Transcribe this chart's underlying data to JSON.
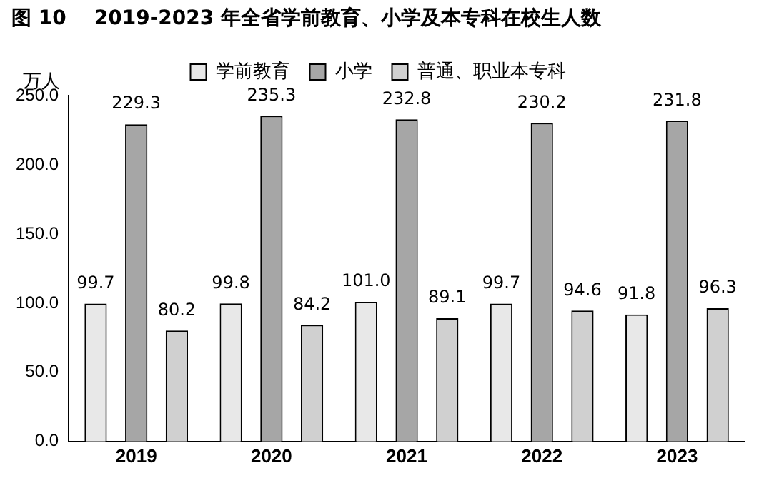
{
  "chart_data": {
    "type": "bar",
    "title": "图 10    2019-2023 年全省学前教育、小学及本专科在校生人数",
    "ylabel": "万人",
    "categories": [
      "2019",
      "2020",
      "2021",
      "2022",
      "2023"
    ],
    "series": [
      {
        "name": "学前教育",
        "color": "#e8e8e8",
        "values": [
          99.7,
          99.8,
          101.0,
          99.7,
          91.8
        ],
        "value_labels": [
          "99.7",
          "99.8",
          "101.0",
          "99.7",
          "91.8"
        ]
      },
      {
        "name": "小学",
        "color": "#a6a6a6",
        "values": [
          229.3,
          235.3,
          232.8,
          230.2,
          231.8
        ],
        "value_labels": [
          "229.3",
          "235.3",
          "232.8",
          "230.2",
          "231.8"
        ]
      },
      {
        "name": "普通、职业本专科",
        "color": "#d0d0d0",
        "values": [
          80.2,
          84.2,
          89.1,
          94.6,
          96.3
        ],
        "value_labels": [
          "80.2",
          "84.2",
          "89.1",
          "94.6",
          "96.3"
        ]
      }
    ],
    "ylim": [
      0,
      250
    ],
    "yticks": [
      {
        "value": 0,
        "label": "0.0"
      },
      {
        "value": 50,
        "label": "50.0"
      },
      {
        "value": 100,
        "label": "100.0"
      },
      {
        "value": 150,
        "label": "150.0"
      },
      {
        "value": 200,
        "label": "200.0"
      },
      {
        "value": 250,
        "label": "250.0"
      }
    ],
    "grid": false,
    "legend": "top"
  }
}
